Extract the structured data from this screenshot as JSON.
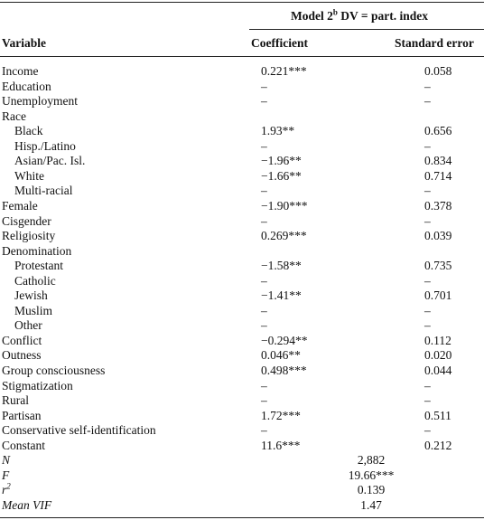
{
  "table": {
    "model_header": {
      "text": "Model 2",
      "sup": "b",
      "rest": " DV = part. index"
    },
    "columns": [
      "Variable",
      "Coefficient",
      "Standard error"
    ],
    "rows": [
      {
        "label": "Income",
        "coefficient": "0.221***",
        "se": "0.058"
      },
      {
        "label": "Education",
        "coefficient": "–",
        "se": "–"
      },
      {
        "label": "Unemployment",
        "coefficient": "–",
        "se": "–"
      },
      {
        "label": "Race",
        "items": [
          {
            "label": "Black",
            "coefficient": "1.93**",
            "se": "0.656"
          },
          {
            "label": "Hisp./Latino",
            "coefficient": "–",
            "se": "–"
          },
          {
            "label": "Asian/Pac. Isl.",
            "coefficient": "−1.96**",
            "se": "0.834"
          },
          {
            "label": "White",
            "coefficient": "−1.66**",
            "se": "0.714"
          },
          {
            "label": "Multi-racial",
            "coefficient": "–",
            "se": "–"
          }
        ]
      },
      {
        "label": "Female",
        "coefficient": "−1.90***",
        "se": "0.378"
      },
      {
        "label": "Cisgender",
        "coefficient": "–",
        "se": "–"
      },
      {
        "label": "Religiosity",
        "coefficient": "0.269***",
        "se": "0.039"
      },
      {
        "label": "Denomination",
        "items": [
          {
            "label": "Protestant",
            "coefficient": "−1.58**",
            "se": "0.735"
          },
          {
            "label": "Catholic",
            "coefficient": "–",
            "se": "–"
          },
          {
            "label": "Jewish",
            "coefficient": "−1.41**",
            "se": "0.701"
          },
          {
            "label": "Muslim",
            "coefficient": "–",
            "se": "–"
          },
          {
            "label": "Other",
            "coefficient": "–",
            "se": "–"
          }
        ]
      },
      {
        "label": "Conflict",
        "coefficient": "−0.294**",
        "se": "0.112"
      },
      {
        "label": "Outness",
        "coefficient": "0.046**",
        "se": "0.020"
      },
      {
        "label": "Group consciousness",
        "coefficient": "0.498***",
        "se": "0.044"
      },
      {
        "label": "Stigmatization",
        "coefficient": "–",
        "se": "–"
      },
      {
        "label": "Rural",
        "coefficient": "–",
        "se": "–"
      },
      {
        "label": "Partisan",
        "coefficient": "1.72***",
        "se": "0.511"
      },
      {
        "label": "Conservative self-identification",
        "coefficient": "–",
        "se": "–"
      },
      {
        "label": "Constant",
        "coefficient": "11.6***",
        "se": "0.212"
      }
    ],
    "stats": [
      {
        "label": "N",
        "value": "2,882"
      },
      {
        "label": "F",
        "value": "19.66***"
      },
      {
        "label": "r",
        "sup": "2",
        "value": "0.139"
      },
      {
        "label": "Mean VIF",
        "value": "1.47"
      }
    ]
  }
}
